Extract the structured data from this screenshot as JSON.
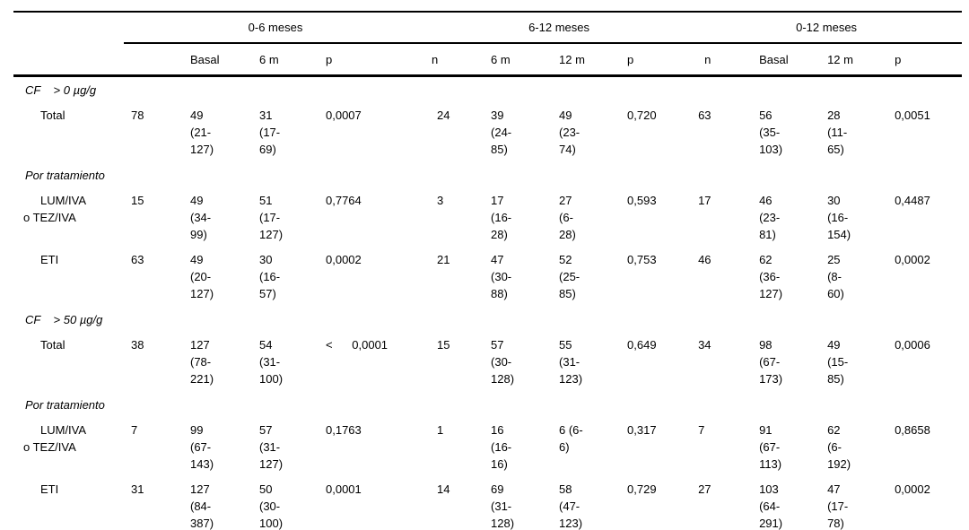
{
  "colors": {
    "background": "#ffffff",
    "text": "#000000",
    "rule": "#000000"
  },
  "table": {
    "groups": [
      {
        "label": "0-6 meses"
      },
      {
        "label": "6-12 meses"
      },
      {
        "label": "0-12 meses"
      }
    ],
    "columns": [
      "",
      "",
      "Basal",
      "6 m",
      "p",
      "n",
      "6 m",
      "12 m",
      "p",
      "n",
      "Basal",
      "12 m",
      "p"
    ],
    "rows": [
      {
        "type": "section",
        "label": "CF    > 0 µg/g"
      },
      {
        "type": "data",
        "label": "Total",
        "cells": [
          "78",
          "49\n(21-\n127)",
          "31\n(17-\n69)",
          "0,0007",
          "24",
          "39\n(24-\n85)",
          "49\n(23-\n74)",
          "0,720",
          "63",
          "56\n(35-\n103)",
          "28\n(11-\n65)",
          "0,0051"
        ]
      },
      {
        "type": "section",
        "label": "Por tratamiento"
      },
      {
        "type": "data",
        "label": "LUM/IVA\no TEZ/IVA",
        "cells": [
          "15",
          "49\n(34-\n99)",
          "51\n(17-\n127)",
          "0,7764",
          "3",
          "17\n(16-\n28)",
          "27\n(6-\n28)",
          "0,593",
          "17",
          "46\n(23-\n81)",
          "30\n(16-\n154)",
          "0,4487"
        ]
      },
      {
        "type": "data",
        "label": "ETI",
        "cells": [
          "63",
          "49\n(20-\n127)",
          "30\n(16-\n57)",
          "0,0002",
          "21",
          "47\n(30-\n88)",
          "52\n(25-\n85)",
          "0,753",
          "46",
          "62\n(36-\n127)",
          "25\n(8-\n60)",
          "0,0002"
        ]
      },
      {
        "type": "section",
        "label": "CF    > 50 µg/g"
      },
      {
        "type": "data",
        "label": "Total",
        "cells": [
          "38",
          "127\n(78-\n221)",
          "54\n(31-\n100)",
          "<      0,0001",
          "15",
          "57\n(30-\n128)",
          "55\n(31-\n123)",
          "0,649",
          "34",
          "98\n(67-\n173)",
          "49\n(15-\n85)",
          "0,0006"
        ]
      },
      {
        "type": "section",
        "label": "Por tratamiento"
      },
      {
        "type": "data",
        "label": "LUM/IVA\no TEZ/IVA",
        "cells": [
          "7",
          "99\n(67-\n143)",
          "57\n(31-\n127)",
          "0,1763",
          "1",
          "16\n(16-\n16)",
          "6 (6-\n6)",
          "0,317",
          "7",
          "91\n(67-\n113)",
          "62\n(6-\n192)",
          "0,8658"
        ]
      },
      {
        "type": "data",
        "label": "ETI",
        "cells": [
          "31",
          "127\n(84-\n387)",
          "50\n(30-\n100)",
          "0,0001",
          "14",
          "69\n(31-\n128)",
          "58\n(47-\n123)",
          "0,729",
          "27",
          "103\n(64-\n291)",
          "47\n(17-\n78)",
          "0,0002"
        ]
      }
    ]
  }
}
